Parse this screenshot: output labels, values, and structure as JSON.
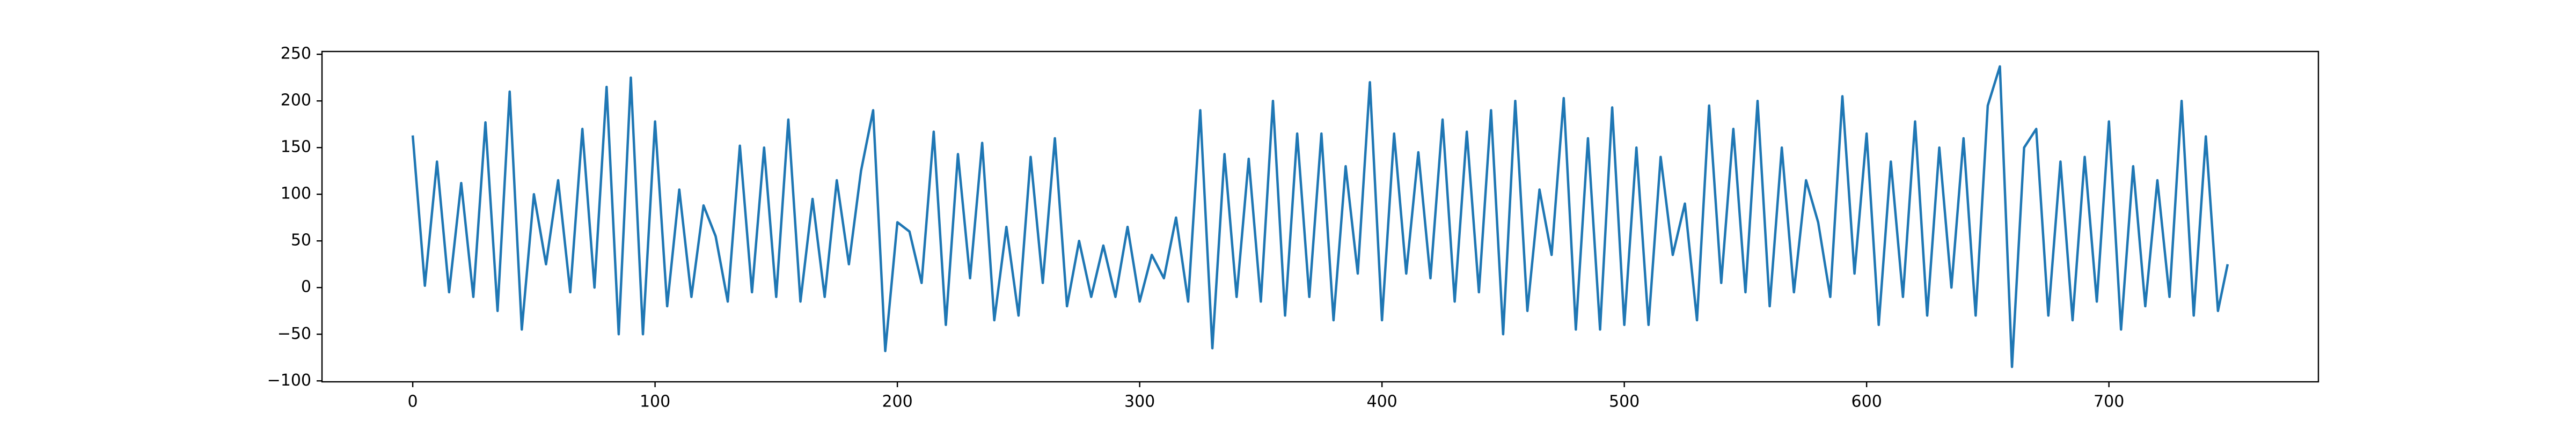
{
  "chart_data": {
    "type": "line",
    "color": "#1f77b4",
    "x": [
      0,
      5,
      10,
      15,
      20,
      25,
      30,
      35,
      40,
      45,
      50,
      55,
      60,
      65,
      70,
      75,
      80,
      85,
      90,
      95,
      100,
      105,
      110,
      115,
      120,
      125,
      130,
      135,
      140,
      145,
      150,
      155,
      160,
      165,
      170,
      175,
      180,
      185,
      190,
      195,
      200,
      205,
      210,
      215,
      220,
      225,
      230,
      235,
      240,
      245,
      250,
      255,
      260,
      265,
      270,
      275,
      280,
      285,
      290,
      295,
      300,
      305,
      310,
      315,
      320,
      325,
      330,
      335,
      340,
      345,
      350,
      355,
      360,
      365,
      370,
      375,
      380,
      385,
      390,
      395,
      400,
      405,
      410,
      415,
      420,
      425,
      430,
      435,
      440,
      445,
      450,
      455,
      460,
      465,
      470,
      475,
      480,
      485,
      490,
      495,
      500,
      505,
      510,
      515,
      520,
      525,
      530,
      535,
      540,
      545,
      550,
      555,
      560,
      565,
      570,
      575,
      580,
      585,
      590,
      595,
      600,
      605,
      610,
      615,
      620,
      625,
      630,
      635,
      640,
      645,
      650,
      655,
      660,
      665,
      670,
      675,
      680,
      685,
      690,
      695,
      700,
      705,
      710,
      715,
      720,
      725,
      730,
      735,
      740,
      745,
      749
    ],
    "values": [
      163,
      2,
      135,
      -5,
      112,
      -10,
      177,
      -25,
      210,
      -45,
      100,
      25,
      115,
      -5,
      170,
      0,
      215,
      -50,
      225,
      -50,
      178,
      -20,
      105,
      -10,
      88,
      55,
      -15,
      152,
      -5,
      150,
      -10,
      180,
      -15,
      95,
      -10,
      115,
      25,
      125,
      190,
      -68,
      70,
      60,
      5,
      167,
      -40,
      143,
      10,
      155,
      -35,
      65,
      -30,
      140,
      5,
      160,
      -20,
      50,
      -10,
      45,
      -10,
      65,
      -15,
      35,
      10,
      75,
      -15,
      190,
      -65,
      143,
      -10,
      138,
      -15,
      200,
      -30,
      165,
      -10,
      165,
      -35,
      130,
      15,
      220,
      -35,
      165,
      15,
      145,
      10,
      180,
      -15,
      167,
      -5,
      190,
      -50,
      200,
      -25,
      105,
      35,
      203,
      -45,
      160,
      -45,
      193,
      -40,
      150,
      -40,
      140,
      35,
      90,
      -35,
      195,
      5,
      170,
      -5,
      200,
      -20,
      150,
      -5,
      115,
      70,
      -10,
      205,
      15,
      165,
      -40,
      135,
      -10,
      178,
      -30,
      150,
      0,
      160,
      -30,
      195,
      237,
      -85,
      150,
      170,
      -30,
      135,
      -35,
      140,
      -15,
      178,
      -45,
      130,
      -20,
      115,
      -10,
      200,
      -30,
      162,
      -25,
      25
    ],
    "xlim": [
      -37.45,
      786.45
    ],
    "ylim": [
      -101,
      253
    ],
    "xticks": [
      0,
      100,
      200,
      300,
      400,
      500,
      600,
      700
    ],
    "yticks": [
      {
        "value": -100,
        "label": "−100"
      },
      {
        "value": -50,
        "label": "−50"
      },
      0,
      50,
      100,
      150,
      200,
      250
    ]
  }
}
